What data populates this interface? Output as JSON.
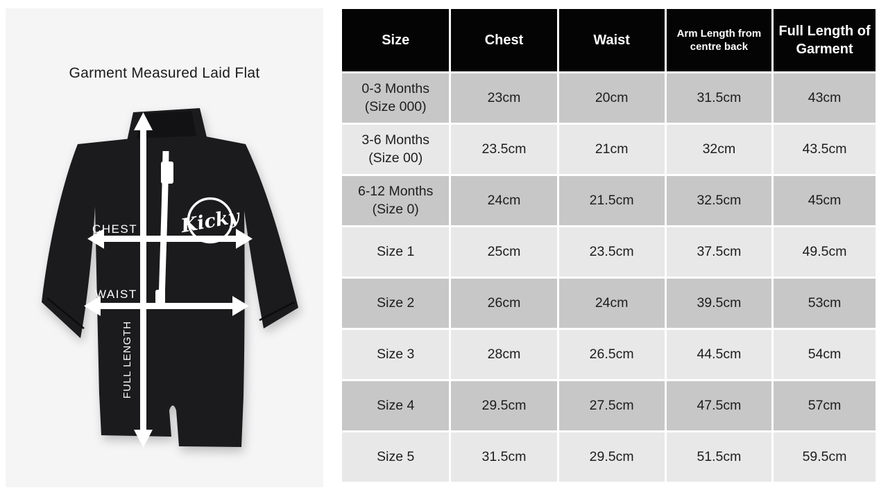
{
  "left_panel": {
    "title": "Garment Measured Laid Flat",
    "logo_text": "Kicky",
    "labels": {
      "chest": "CHEST",
      "waist": "WAIST",
      "full_length": "FULL LENGTH"
    }
  },
  "table": {
    "columns": [
      "Size",
      "Chest",
      "Waist",
      "Arm Length from centre back",
      "Full Length of Garment"
    ],
    "rows": [
      [
        "0-3 Months\n(Size 000)",
        "23cm",
        "20cm",
        "31.5cm",
        "43cm"
      ],
      [
        "3-6 Months\n(Size 00)",
        "23.5cm",
        "21cm",
        "32cm",
        "43.5cm"
      ],
      [
        "6-12 Months\n(Size 0)",
        "24cm",
        "21.5cm",
        "32.5cm",
        "45cm"
      ],
      [
        "Size 1",
        "25cm",
        "23.5cm",
        "37.5cm",
        "49.5cm"
      ],
      [
        "Size 2",
        "26cm",
        "24cm",
        "39.5cm",
        "53cm"
      ],
      [
        "Size 3",
        "28cm",
        "26.5cm",
        "44.5cm",
        "54cm"
      ],
      [
        "Size 4",
        "29.5cm",
        "27.5cm",
        "47.5cm",
        "57cm"
      ],
      [
        "Size 5",
        "31.5cm",
        "29.5cm",
        "51.5cm",
        "59.5cm"
      ]
    ]
  },
  "colors": {
    "panel_bg": "#f5f5f6",
    "header_bg": "#040404",
    "header_text": "#ffffff",
    "row_dark": "#c7c7c7",
    "row_light": "#e8e8e8",
    "cell_text": "#1d1d1d",
    "garment": "#1b1b1d",
    "arrow": "#ffffff"
  },
  "chart_data": {
    "type": "table",
    "title": "Garment Measured Laid Flat",
    "columns": [
      "Size",
      "Chest",
      "Waist",
      "Arm Length from centre back",
      "Full Length of Garment"
    ],
    "rows": [
      [
        "0-3 Months (Size 000)",
        "23cm",
        "20cm",
        "31.5cm",
        "43cm"
      ],
      [
        "3-6 Months (Size 00)",
        "23.5cm",
        "21cm",
        "32cm",
        "43.5cm"
      ],
      [
        "6-12 Months (Size 0)",
        "24cm",
        "21.5cm",
        "32.5cm",
        "45cm"
      ],
      [
        "Size 1",
        "25cm",
        "23.5cm",
        "37.5cm",
        "49.5cm"
      ],
      [
        "Size 2",
        "26cm",
        "24cm",
        "39.5cm",
        "53cm"
      ],
      [
        "Size 3",
        "28cm",
        "26.5cm",
        "44.5cm",
        "54cm"
      ],
      [
        "Size 4",
        "29.5cm",
        "27.5cm",
        "47.5cm",
        "57cm"
      ],
      [
        "Size 5",
        "31.5cm",
        "29.5cm",
        "51.5cm",
        "59.5cm"
      ]
    ],
    "layout_hints": {
      "header_style": "black background, white bold text",
      "row_striping": "alternating grey (#c7c7c7 / #e8e8e8)",
      "left_graphic": "black infant rash-suit photo annotated with CHEST, WAIST and FULL LENGTH measurement arrows"
    }
  }
}
